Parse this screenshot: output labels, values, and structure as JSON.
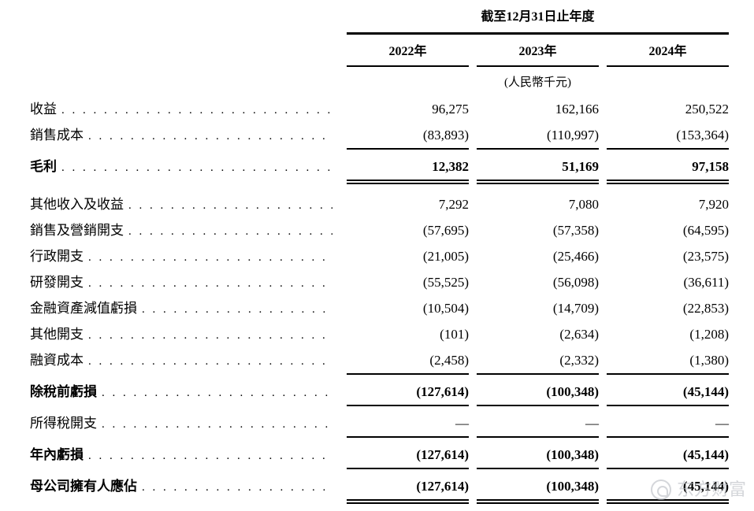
{
  "table": {
    "period_header": "截至12月31日止年度",
    "year_columns": [
      "2022年",
      "2023年",
      "2024年"
    ],
    "unit_note": "(人民幣千元)",
    "rows": [
      {
        "label": "收益",
        "values": [
          "96,275",
          "162,166",
          "250,522"
        ]
      },
      {
        "label": "銷售成本",
        "values": [
          "(83,893)",
          "(110,997)",
          "(153,364)"
        ],
        "rule": "single"
      },
      {
        "label": "毛利",
        "values": [
          "12,382",
          "51,169",
          "97,158"
        ],
        "bold": true,
        "rule": "double",
        "gap": true
      },
      {
        "label": "其他收入及收益",
        "values": [
          "7,292",
          "7,080",
          "7,920"
        ]
      },
      {
        "label": "銷售及營銷開支",
        "values": [
          "(57,695)",
          "(57,358)",
          "(64,595)"
        ]
      },
      {
        "label": "行政開支",
        "values": [
          "(21,005)",
          "(25,466)",
          "(23,575)"
        ]
      },
      {
        "label": "研發開支",
        "values": [
          "(55,525)",
          "(56,098)",
          "(36,611)"
        ]
      },
      {
        "label": "金融資產減值虧損",
        "values": [
          "(10,504)",
          "(14,709)",
          "(22,853)"
        ]
      },
      {
        "label": "其他開支",
        "values": [
          "(101)",
          "(2,634)",
          "(1,208)"
        ]
      },
      {
        "label": "融資成本",
        "values": [
          "(2,458)",
          "(2,332)",
          "(1,380)"
        ],
        "rule": "single"
      },
      {
        "label": "除稅前虧損",
        "values": [
          "(127,614)",
          "(100,348)",
          "(45,144)"
        ],
        "bold": true,
        "rule": "single"
      },
      {
        "label": "所得稅開支",
        "values": [
          "—",
          "—",
          "—"
        ],
        "rule": "single"
      },
      {
        "label": "年內虧損",
        "values": [
          "(127,614)",
          "(100,348)",
          "(45,144)"
        ],
        "bold": true,
        "rule": "single"
      },
      {
        "label": "母公司擁有人應佔",
        "values": [
          "(127,614)",
          "(100,348)",
          "(45,144)"
        ],
        "bold": true,
        "rule": "double"
      }
    ]
  },
  "watermark": {
    "text": "东方财富"
  }
}
